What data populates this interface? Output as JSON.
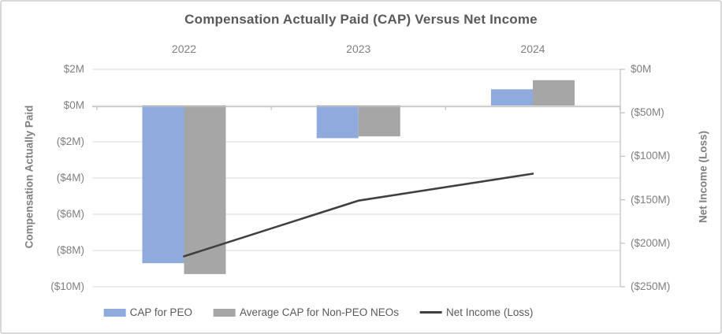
{
  "chart_data": {
    "type": "combo-bar-line",
    "title": "Compensation Actually Paid (CAP) Versus Net Income",
    "categories": [
      "2022",
      "2023",
      "2024"
    ],
    "series": [
      {
        "name": "CAP for PEO",
        "type": "bar",
        "axis": "left",
        "color": "#8FAADC",
        "values": [
          -8.7,
          -1.8,
          0.9
        ]
      },
      {
        "name": "Average CAP for Non-PEO NEOs",
        "type": "bar",
        "axis": "left",
        "color": "#A6A6A6",
        "values": [
          -9.3,
          -1.7,
          1.4
        ]
      },
      {
        "name": "Net Income (Loss)",
        "type": "line",
        "axis": "right",
        "color": "#404040",
        "values": [
          -215,
          -151,
          -120
        ]
      }
    ],
    "left_axis": {
      "title": "Compensation Actually Paid",
      "unit": "$M",
      "range": [
        2,
        -10
      ],
      "ticks": [
        2,
        0,
        -2,
        -4,
        -6,
        -8,
        -10
      ],
      "tick_labels": [
        "$2M",
        "$0M",
        "($2M)",
        "($4M)",
        "($6M)",
        "($8M)",
        "($10M)"
      ]
    },
    "right_axis": {
      "title": "Net Income (Loss)",
      "unit": "$M",
      "range": [
        0,
        -250
      ],
      "ticks": [
        0,
        -50,
        -100,
        -150,
        -200,
        -250
      ],
      "tick_labels": [
        "$0M",
        "($50M)",
        "($100M)",
        "($150M)",
        "($200M)",
        "($250M)"
      ]
    },
    "legend": [
      {
        "label": "CAP for PEO",
        "swatch": "bar",
        "color": "#8FAADC"
      },
      {
        "label": "Average CAP for Non-PEO NEOs",
        "swatch": "bar",
        "color": "#A6A6A6"
      },
      {
        "label": "Net Income (Loss)",
        "swatch": "line",
        "color": "#404040"
      }
    ],
    "layout_hints": {
      "category_labels_position": "top",
      "legend_position": "bottom",
      "gridlines": "horizontal"
    }
  },
  "styles": {
    "title_color": "#595959",
    "axis_label_color": "#7F7F7F",
    "gridline_color": "#D9D9D9",
    "axis_line_color": "#BFBFBF",
    "background": "#FFFFFF",
    "frame_border_color": "#D8D8D8"
  }
}
